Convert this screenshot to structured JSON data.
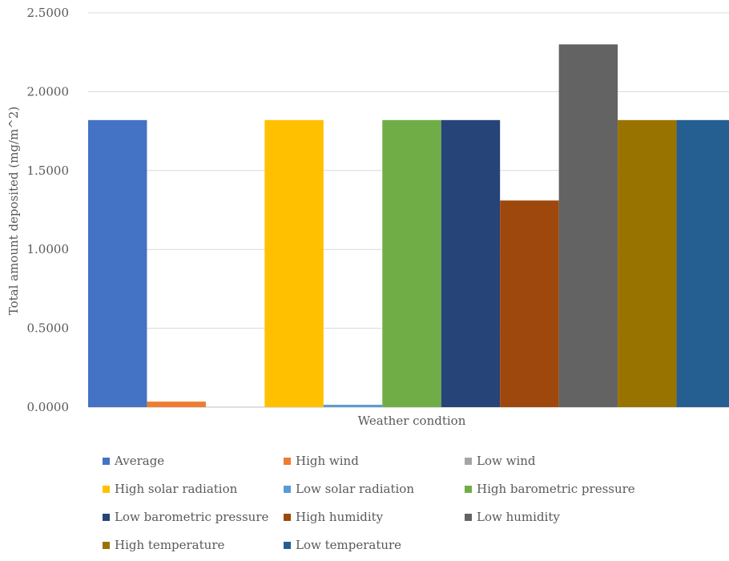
{
  "chart_data": {
    "type": "bar",
    "title": "",
    "xlabel": "Weather condtion",
    "ylabel": "Total amount deposited (mg/m^2)",
    "ylim": [
      0,
      2.5
    ],
    "yticks": [
      "0.0000",
      "0.5000",
      "1.0000",
      "1.5000",
      "2.0000",
      "2.5000"
    ],
    "grid": true,
    "legend_position": "bottom",
    "series": [
      {
        "name": "Average",
        "value": 1.82,
        "color": "#4472C4"
      },
      {
        "name": "High wind",
        "value": 0.035,
        "color": "#ED7D31"
      },
      {
        "name": "Low wind",
        "value": 0.0,
        "color": "#A5A5A5"
      },
      {
        "name": "High solar radiation",
        "value": 1.82,
        "color": "#FFC000"
      },
      {
        "name": "Low solar radiation",
        "value": 0.015,
        "color": "#5B9BD5"
      },
      {
        "name": "High barometric pressure",
        "value": 1.82,
        "color": "#70AD47"
      },
      {
        "name": "Low barometric pressure",
        "value": 1.82,
        "color": "#264478"
      },
      {
        "name": "High humidity",
        "value": 1.31,
        "color": "#9E480E"
      },
      {
        "name": "Low humidity",
        "value": 2.3,
        "color": "#636363"
      },
      {
        "name": "High temperature",
        "value": 1.82,
        "color": "#997300"
      },
      {
        "name": "Low temperature",
        "value": 1.82,
        "color": "#255E91"
      }
    ]
  }
}
